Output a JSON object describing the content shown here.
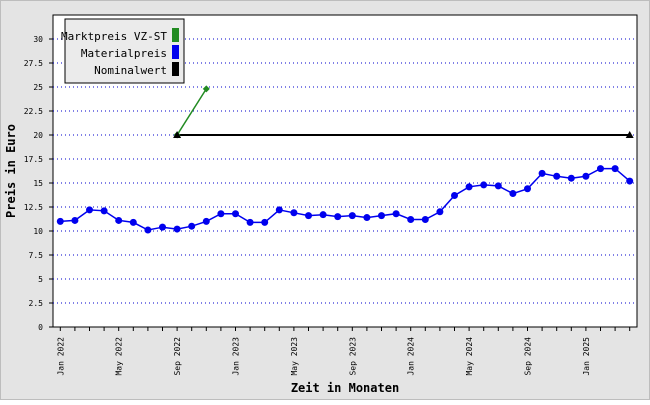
{
  "chart_data": {
    "type": "line",
    "title": "",
    "xlabel": "Zeit in Monaten",
    "ylabel": "Preis in Euro",
    "ylim": [
      0,
      32.5
    ],
    "y_ticks": [
      0,
      2.5,
      5,
      7.5,
      10,
      12.5,
      15,
      17.5,
      20,
      22.5,
      25,
      27.5,
      30
    ],
    "y_tick_labels": [
      "0",
      "2.5",
      "5",
      "7.5",
      "10",
      "12.5",
      "15",
      "17.5",
      "20",
      "22.5",
      "25",
      "27.5",
      "30"
    ],
    "x_tick_labels": [
      "Jan 2022",
      "May 2022",
      "Sep 2022",
      "Jan 2023",
      "May 2023",
      "Sep 2023",
      "Jan 2024",
      "May 2024",
      "Sep 2024",
      "Jan 2025"
    ],
    "x": [
      "2022-01",
      "2022-02",
      "2022-03",
      "2022-04",
      "2022-05",
      "2022-06",
      "2022-07",
      "2022-08",
      "2022-09",
      "2022-10",
      "2022-11",
      "2022-12",
      "2023-01",
      "2023-02",
      "2023-03",
      "2023-04",
      "2023-05",
      "2023-06",
      "2023-07",
      "2023-08",
      "2023-09",
      "2023-10",
      "2023-11",
      "2023-12",
      "2024-01",
      "2024-02",
      "2024-03",
      "2024-04",
      "2024-05",
      "2024-06",
      "2024-07",
      "2024-08",
      "2024-09",
      "2024-10",
      "2024-11",
      "2024-12",
      "2025-01",
      "2025-02",
      "2025-03",
      "2025-04"
    ],
    "grid": true,
    "legend_position": "top-left",
    "series": [
      {
        "name": "Marktpreis VZ-ST",
        "color": "#228b22",
        "marker": "diamond",
        "points": [
          [
            "2022-09",
            20.0
          ],
          [
            "2022-11",
            24.8
          ]
        ]
      },
      {
        "name": "Materialpreis",
        "color": "#0000ee",
        "marker": "circle",
        "points": [
          [
            "2022-01",
            11.0
          ],
          [
            "2022-02",
            11.1
          ],
          [
            "2022-03",
            12.2
          ],
          [
            "2022-04",
            12.1
          ],
          [
            "2022-05",
            11.1
          ],
          [
            "2022-06",
            10.9
          ],
          [
            "2022-07",
            10.1
          ],
          [
            "2022-08",
            10.4
          ],
          [
            "2022-09",
            10.2
          ],
          [
            "2022-10",
            10.5
          ],
          [
            "2022-11",
            11.0
          ],
          [
            "2022-12",
            11.8
          ],
          [
            "2023-01",
            11.8
          ],
          [
            "2023-02",
            10.9
          ],
          [
            "2023-03",
            10.9
          ],
          [
            "2023-04",
            12.2
          ],
          [
            "2023-05",
            11.9
          ],
          [
            "2023-06",
            11.6
          ],
          [
            "2023-07",
            11.7
          ],
          [
            "2023-08",
            11.5
          ],
          [
            "2023-09",
            11.6
          ],
          [
            "2023-10",
            11.4
          ],
          [
            "2023-11",
            11.6
          ],
          [
            "2023-12",
            11.8
          ],
          [
            "2024-01",
            11.2
          ],
          [
            "2024-02",
            11.2
          ],
          [
            "2024-03",
            12.0
          ],
          [
            "2024-04",
            13.7
          ],
          [
            "2024-05",
            14.6
          ],
          [
            "2024-06",
            14.8
          ],
          [
            "2024-07",
            14.7
          ],
          [
            "2024-08",
            13.9
          ],
          [
            "2024-09",
            14.4
          ],
          [
            "2024-10",
            16.0
          ],
          [
            "2024-11",
            15.7
          ],
          [
            "2024-12",
            15.5
          ],
          [
            "2025-01",
            15.7
          ],
          [
            "2025-02",
            16.5
          ],
          [
            "2025-03",
            16.5
          ],
          [
            "2025-04",
            15.2
          ]
        ]
      },
      {
        "name": "Nominalwert",
        "color": "#000000",
        "marker": "triangle",
        "points": [
          [
            "2022-09",
            20.0
          ],
          [
            "2025-04",
            20.0
          ]
        ]
      }
    ]
  }
}
